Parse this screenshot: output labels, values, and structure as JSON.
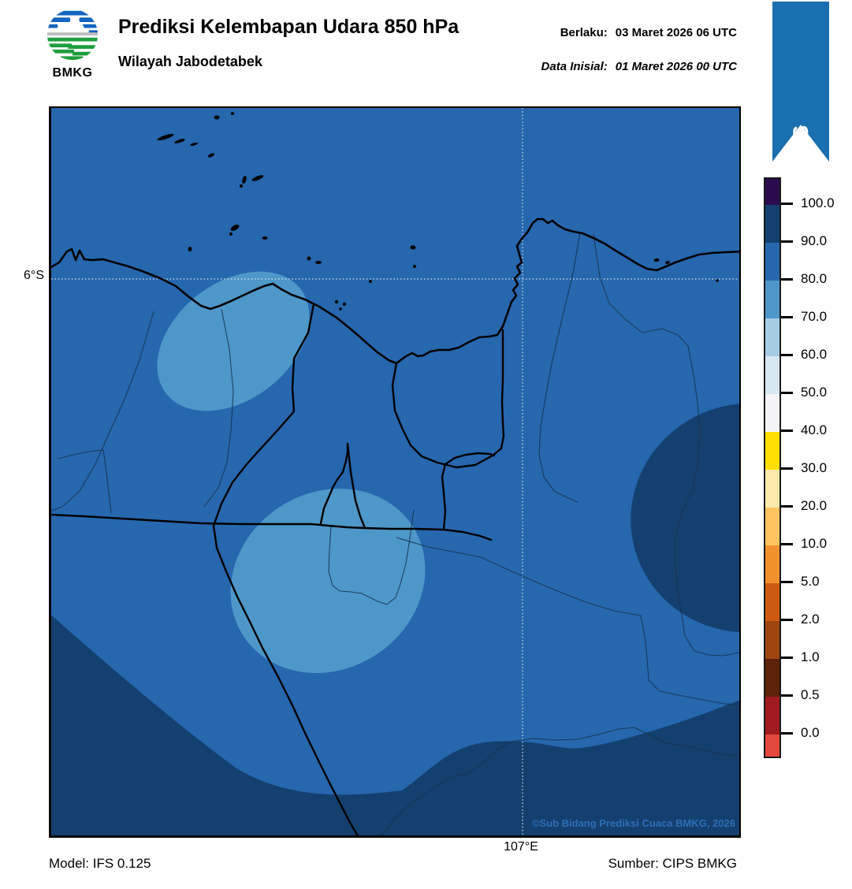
{
  "header": {
    "title": "Prediksi Kelembapan Udara 850 hPa",
    "subtitle": "Wilayah Jabodetabek",
    "valid_label": "Berlaku:",
    "valid_value": "03 Maret 2026 06 UTC",
    "init_label": "Data Inisial:",
    "init_value": "01 Maret 2026 00 UTC",
    "logo_text": "BMKG"
  },
  "ribbon": {
    "label": "IFS",
    "color": "#1A6FAE"
  },
  "map": {
    "lat_label": "6°S",
    "lon_label": "107°E",
    "copyright": "©Sub Bidang Prediksi Cuaca BMKG, 2026"
  },
  "footer": {
    "model": "Model: IFS 0.125",
    "source": "Sumber: CIPS BMKG"
  },
  "colors": {
    "band_80_90": "#2667AE",
    "band_70_80": "#4E97C9",
    "band_90_100": "#14406F",
    "coastline": "#000000",
    "thin_boundary": "#16324F",
    "gridline": "#D8E2EA",
    "copyright_text": "#2D6FB5"
  },
  "colorbar": {
    "segments": [
      "#2B0B4E",
      "#14406F",
      "#2667AE",
      "#4E97C9",
      "#A6CCE3",
      "#D8E8F2",
      "#F4F4F6",
      "#FFDE03",
      "#FBE9AC",
      "#FDC45F",
      "#F2922E",
      "#CE5A11",
      "#9C450F",
      "#5C2309",
      "#A01B1F",
      "#E2493C"
    ],
    "labels": [
      "100.0",
      "90.0",
      "80.0",
      "70.0",
      "60.0",
      "50.0",
      "40.0",
      "30.0",
      "20.0",
      "10.0",
      "5.0",
      "2.0",
      "1.0",
      "0.5",
      "0.0"
    ]
  },
  "chart_data": {
    "type": "heatmap",
    "title": "Prediksi Kelembapan Udara 850 hPa",
    "region": "Wilayah Jabodetabek",
    "grid_lat": "6°S",
    "grid_lon": "107°E",
    "scale_levels": [
      0.0,
      0.5,
      1.0,
      2.0,
      5.0,
      10.0,
      20.0,
      30.0,
      40.0,
      50.0,
      60.0,
      70.0,
      80.0,
      90.0,
      100.0
    ],
    "depicted_values": {
      "background_band": "80-90",
      "light_patches_band": "70-80",
      "dark_patches_band": "90-100"
    }
  }
}
